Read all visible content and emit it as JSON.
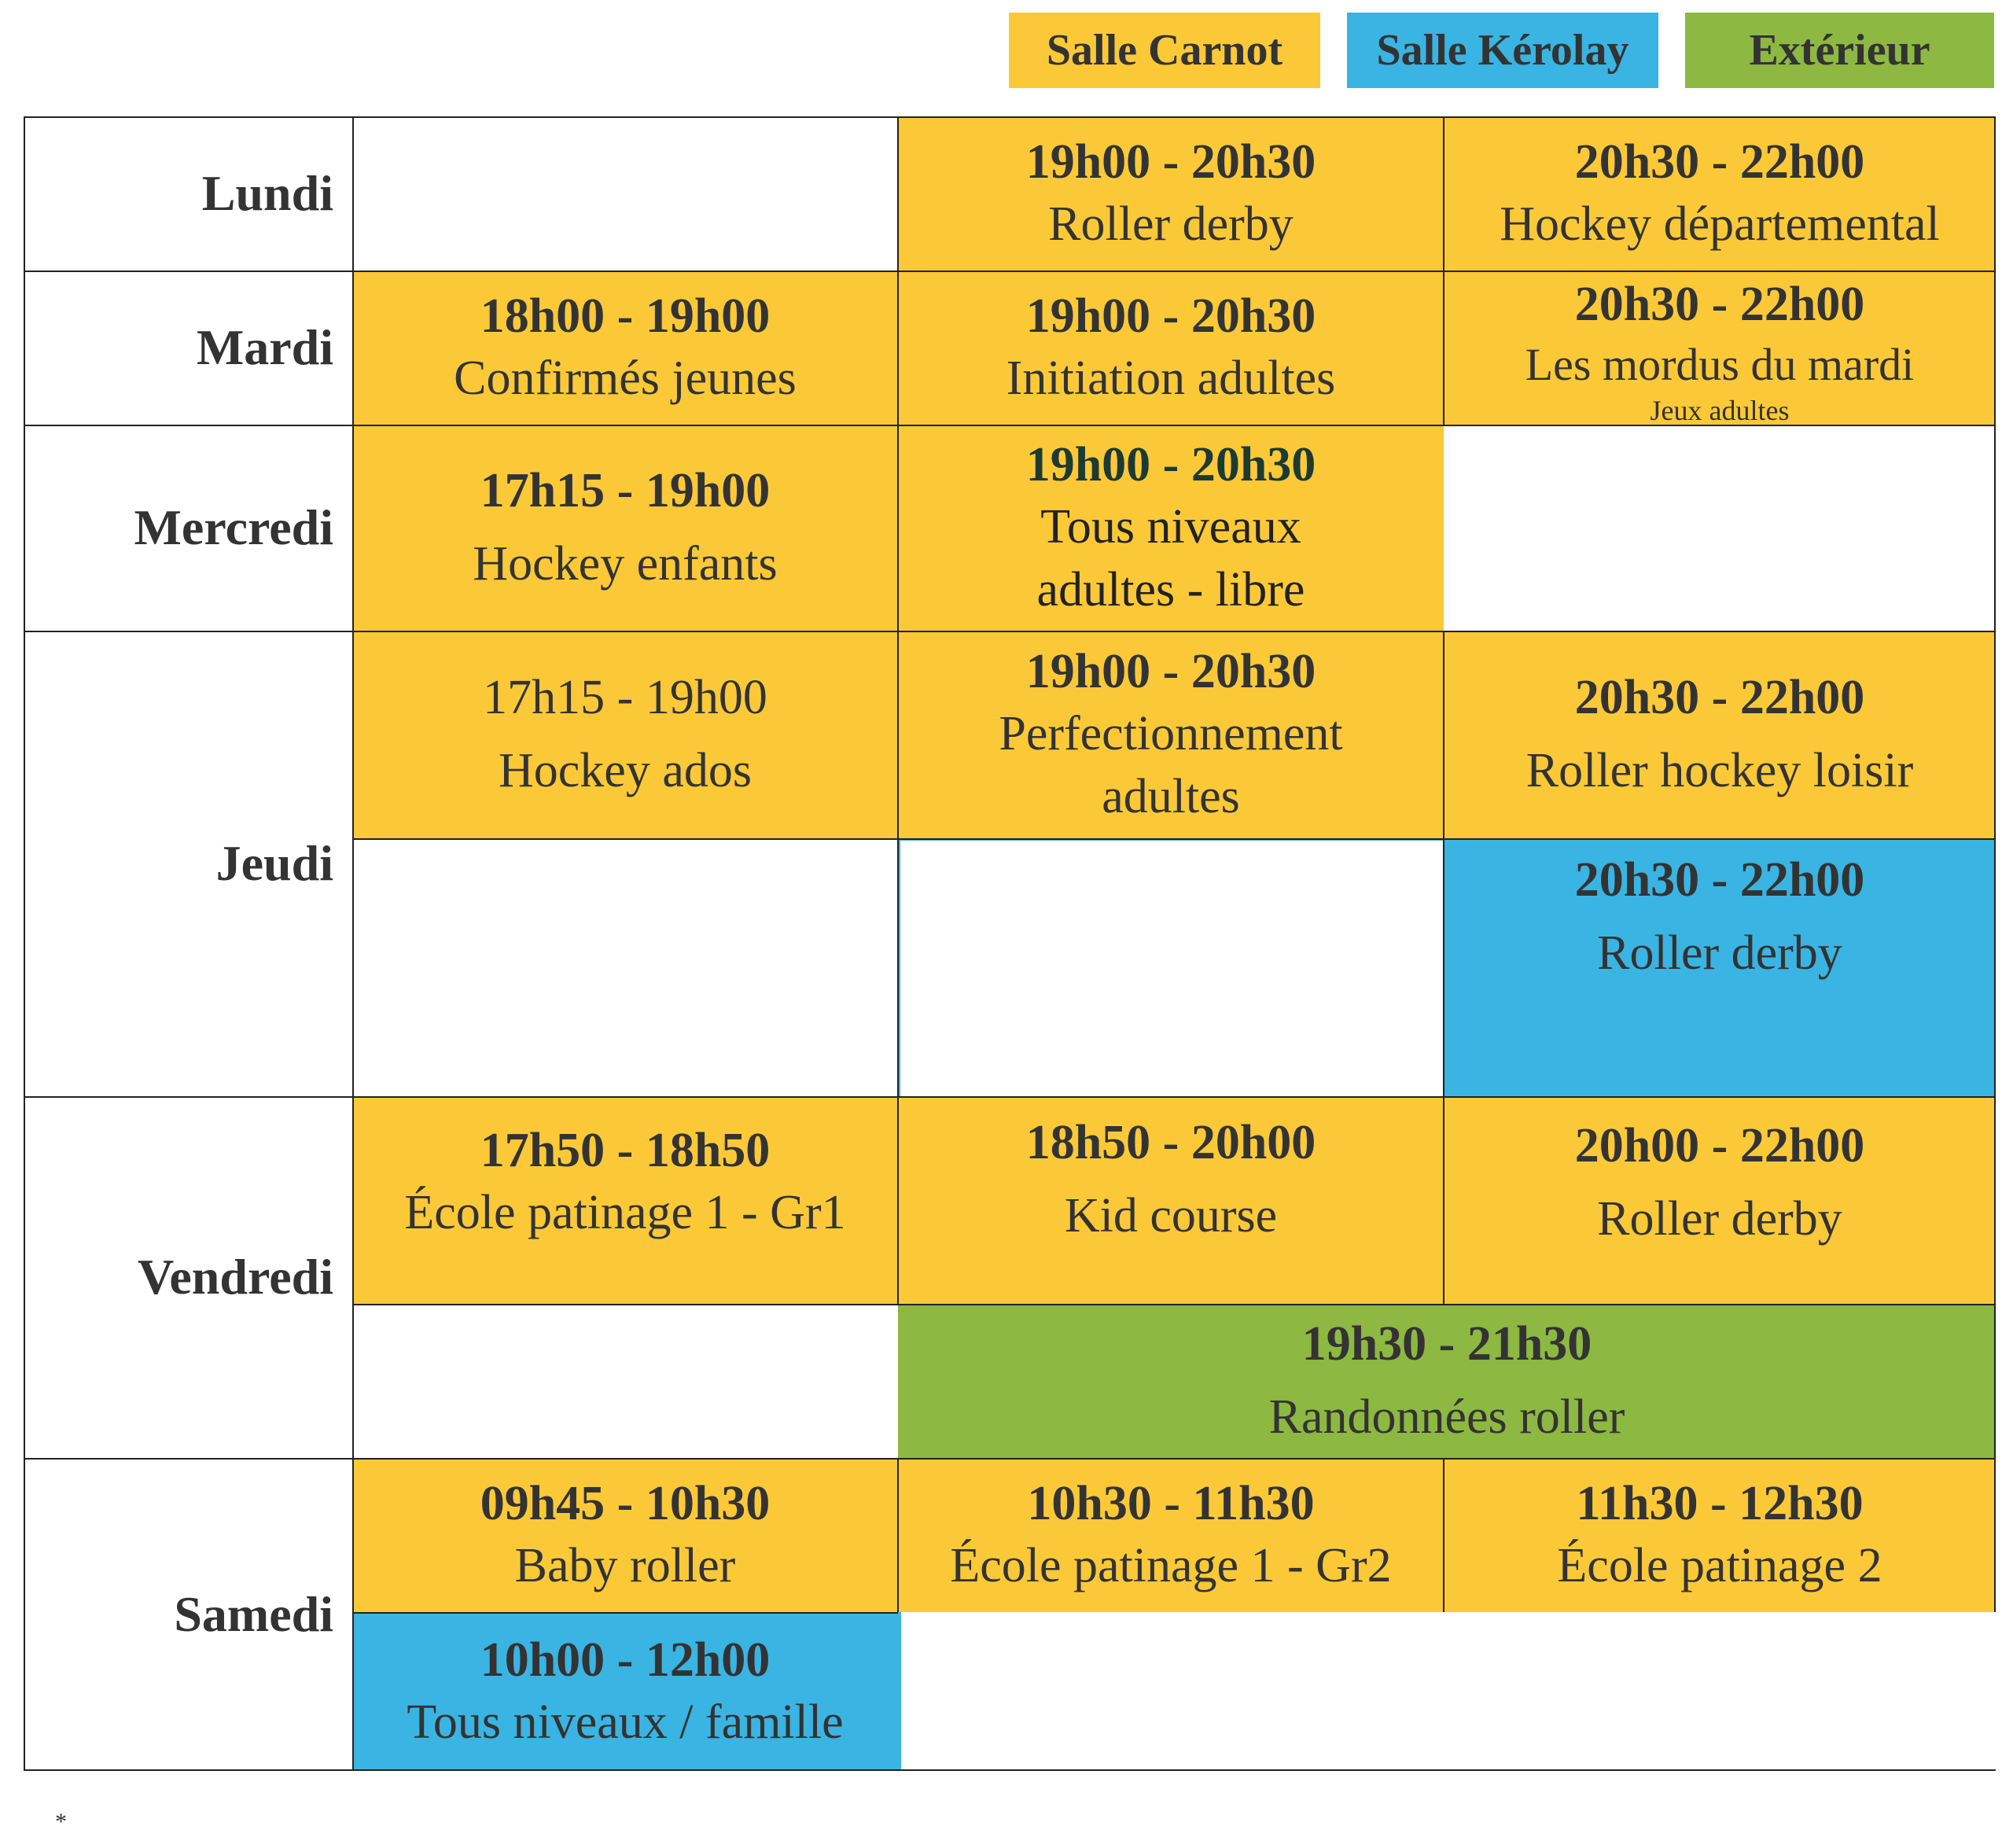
{
  "legend": {
    "carnot": "Salle Carnot",
    "kerolay": "Salle Kérolay",
    "exterieur": "Extérieur"
  },
  "colors": {
    "carnot": "#FBC937",
    "kerolay": "#3AB4E2",
    "exterieur": "#8DB842"
  },
  "days": {
    "lundi": "Lundi",
    "mardi": "Mardi",
    "mercredi": "Mercredi",
    "jeudi": "Jeudi",
    "vendredi": "Vendredi",
    "samedi": "Samedi"
  },
  "sessions": {
    "lundi_1": {
      "time": "19h00 - 20h30",
      "activity": "Roller derby"
    },
    "lundi_2": {
      "time": "20h30 - 22h00",
      "activity": "Hockey départemental"
    },
    "mardi_0": {
      "time": "18h00 - 19h00",
      "activity": "Confirmés jeunes"
    },
    "mardi_1": {
      "time": "19h00 - 20h30",
      "activity": "Initiation adultes"
    },
    "mardi_2": {
      "time": "20h30 - 22h00",
      "activity": "Les mordus du mardi",
      "note": "Jeux adultes"
    },
    "mercredi_0": {
      "time": "17h15 - 19h00",
      "activity": "Hockey enfants"
    },
    "mercredi_1": {
      "time": "19h00 - 20h30",
      "activity": "Tous niveaux",
      "activity2": "adultes - libre"
    },
    "jeudi_0": {
      "time": "17h15 - 19h00",
      "activity": "Hockey ados"
    },
    "jeudi_1": {
      "time": "19h00 - 20h30",
      "activity": "Perfectionnement",
      "activity2": "adultes"
    },
    "jeudi_2": {
      "time": "20h30 - 22h00",
      "activity": "Roller hockey loisir"
    },
    "jeudi_k2": {
      "time": "20h30 - 22h00",
      "activity": "Roller derby"
    },
    "vendredi_0": {
      "time": "17h50 - 18h50",
      "activity": "École patinage 1 - Gr1"
    },
    "vendredi_1": {
      "time": "18h50 - 20h00",
      "activity": "Kid course"
    },
    "vendredi_2": {
      "time": "20h00 - 22h00",
      "activity": "Roller derby"
    },
    "vendredi_ext": {
      "time": "19h30 - 21h30",
      "activity": "Randonnées roller"
    },
    "samedi_0": {
      "time": "09h45 - 10h30",
      "activity": "Baby roller"
    },
    "samedi_1": {
      "time": "10h30 - 11h30",
      "activity": "École patinage 1 - Gr2"
    },
    "samedi_2": {
      "time": "11h30 - 12h30",
      "activity": "École patinage 2"
    },
    "samedi_k0": {
      "time": "10h00 - 12h00",
      "activity": "Tous niveaux / famille"
    }
  },
  "footnote": "*"
}
